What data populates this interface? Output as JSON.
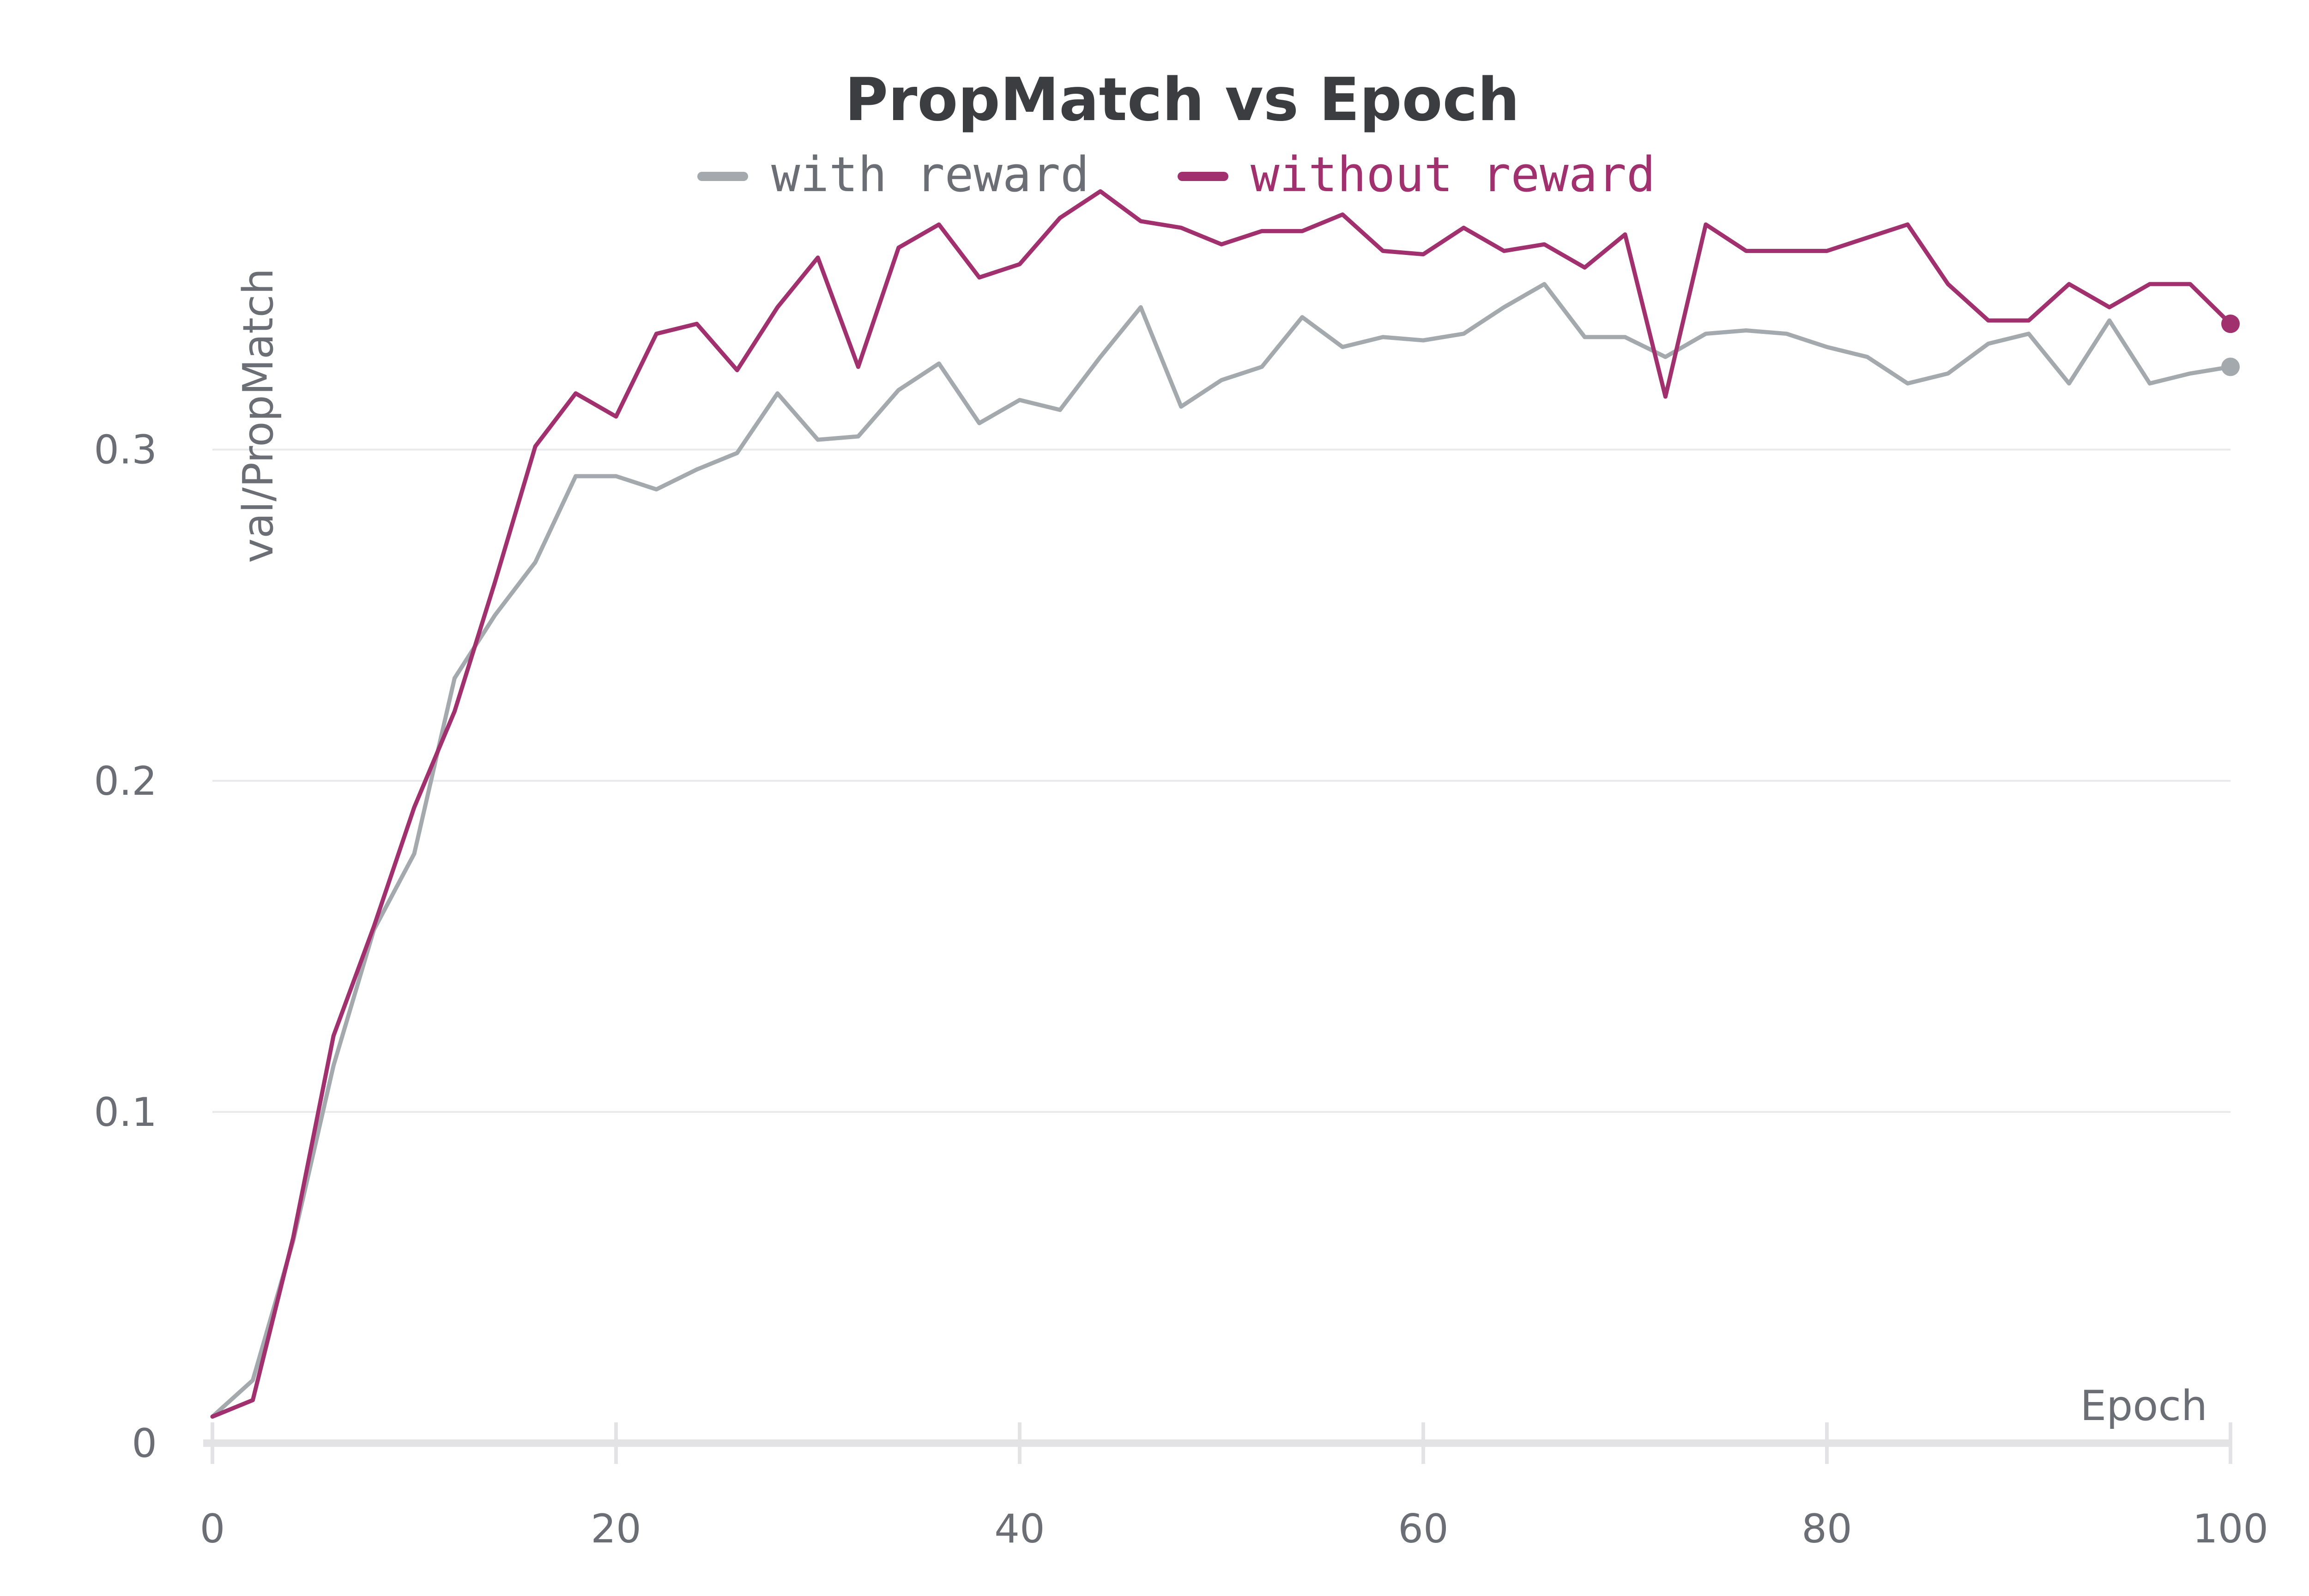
{
  "chart_data": {
    "type": "line",
    "title": "PropMatch vs Epoch",
    "xlabel": "Epoch",
    "ylabel": "val/PropMatch",
    "xlim": [
      0,
      100
    ],
    "ylim": [
      0,
      0.38
    ],
    "xticks": [
      0,
      20,
      40,
      60,
      80,
      100
    ],
    "yticks": [
      0,
      0.1,
      0.2,
      0.3
    ],
    "ytick_labels": [
      "0",
      "0.1",
      "0.2",
      "0.3"
    ],
    "grid": true,
    "legend_position": "top-center",
    "x": [
      0,
      2,
      4,
      6,
      8,
      10,
      12,
      14,
      16,
      18,
      20,
      22,
      24,
      26,
      28,
      30,
      32,
      34,
      36,
      38,
      40,
      42,
      44,
      46,
      48,
      50,
      52,
      54,
      56,
      58,
      60,
      62,
      64,
      66,
      68,
      70,
      72,
      74,
      76,
      78,
      80,
      82,
      84,
      86,
      88,
      90,
      92,
      94,
      96,
      98,
      100
    ],
    "series": [
      {
        "name": "with reward",
        "color": "#a3a9ad",
        "values": [
          0.008,
          0.019,
          0.061,
          0.114,
          0.155,
          0.178,
          0.231,
          0.25,
          0.266,
          0.292,
          0.292,
          0.288,
          0.294,
          0.299,
          0.317,
          0.303,
          0.304,
          0.318,
          0.326,
          0.308,
          0.315,
          0.312,
          0.328,
          0.343,
          0.313,
          0.321,
          0.325,
          0.34,
          0.331,
          0.334,
          0.333,
          0.335,
          0.343,
          0.35,
          0.334,
          0.334,
          0.328,
          0.335,
          0.336,
          0.335,
          0.331,
          0.328,
          0.32,
          0.323,
          0.332,
          0.335,
          0.32,
          0.339,
          0.32,
          0.323,
          0.325
        ]
      },
      {
        "name": "without reward",
        "color": "#a0306e",
        "values": [
          0.008,
          0.013,
          0.062,
          0.123,
          0.156,
          0.192,
          0.221,
          0.26,
          0.301,
          0.317,
          0.31,
          0.335,
          0.338,
          0.324,
          0.343,
          0.358,
          0.325,
          0.361,
          0.368,
          0.352,
          0.356,
          0.37,
          0.378,
          0.369,
          0.367,
          0.362,
          0.366,
          0.366,
          0.371,
          0.36,
          0.359,
          0.367,
          0.36,
          0.362,
          0.355,
          0.365,
          0.316,
          0.368,
          0.36,
          0.36,
          0.36,
          0.364,
          0.368,
          0.35,
          0.339,
          0.339,
          0.35,
          0.343,
          0.35,
          0.35,
          0.338
        ]
      }
    ]
  }
}
